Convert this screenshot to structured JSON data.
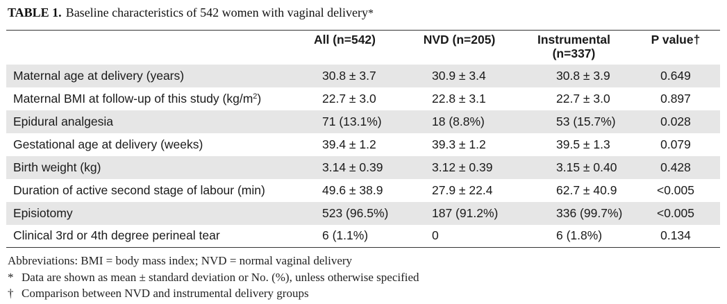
{
  "caption": {
    "label": "TABLE 1.",
    "text": "Baseline characteristics of 542 women with vaginal delivery",
    "mark": "*"
  },
  "columns": [
    {
      "line1": "",
      "line2": ""
    },
    {
      "line1": "All (n=542)",
      "line2": ""
    },
    {
      "line1": "NVD (n=205)",
      "line2": ""
    },
    {
      "line1": "Instrumental",
      "line2": "(n=337)"
    },
    {
      "line1": "P value†",
      "line2": ""
    }
  ],
  "rows": [
    {
      "characteristic": "Maternal age at delivery (years)",
      "all": "30.8 ± 3.7",
      "nvd": "30.9 ± 3.4",
      "instrumental": "30.8 ± 3.9",
      "p": "0.649"
    },
    {
      "characteristic": "Maternal BMI at follow-up of this study (kg/m",
      "sup": "2",
      "tail": ")",
      "all": "22.7 ± 3.0",
      "nvd": "22.8 ± 3.1",
      "instrumental": "22.7 ± 3.0",
      "p": "0.897"
    },
    {
      "characteristic": "Epidural analgesia",
      "all": "71 (13.1%)",
      "nvd": "18 (8.8%)",
      "instrumental": "53 (15.7%)",
      "p": "0.028"
    },
    {
      "characteristic": "Gestational age at delivery (weeks)",
      "all": "39.4 ± 1.2",
      "nvd": "39.3 ± 1.2",
      "instrumental": "39.5 ± 1.3",
      "p": "0.079"
    },
    {
      "characteristic": "Birth weight (kg)",
      "all": "3.14 ± 0.39",
      "nvd": "3.12 ± 0.39",
      "instrumental": "3.15 ± 0.40",
      "p": "0.428"
    },
    {
      "characteristic": "Duration of active second stage of labour (min)",
      "all": "49.6 ± 38.9",
      "nvd": "27.9 ± 22.4",
      "instrumental": "62.7 ± 40.9",
      "p": "<0.005"
    },
    {
      "characteristic": "Episiotomy",
      "all": "523 (96.5%)",
      "nvd": "187 (91.2%)",
      "instrumental": "336 (99.7%)",
      "p": "<0.005"
    },
    {
      "characteristic": "Clinical 3rd or 4th degree perineal tear",
      "all": "6 (1.1%)",
      "nvd": "0",
      "instrumental": "6 (1.8%)",
      "p": "0.134"
    }
  ],
  "notes": {
    "abbreviations": "Abbreviations: BMI = body mass index; NVD = normal vaginal delivery",
    "star_symbol": "*",
    "star_text": "Data are shown as mean ± standard deviation or No. (%), unless otherwise specified",
    "dagger_symbol": "†",
    "dagger_text": "Comparison between NVD and instrumental delivery groups"
  }
}
